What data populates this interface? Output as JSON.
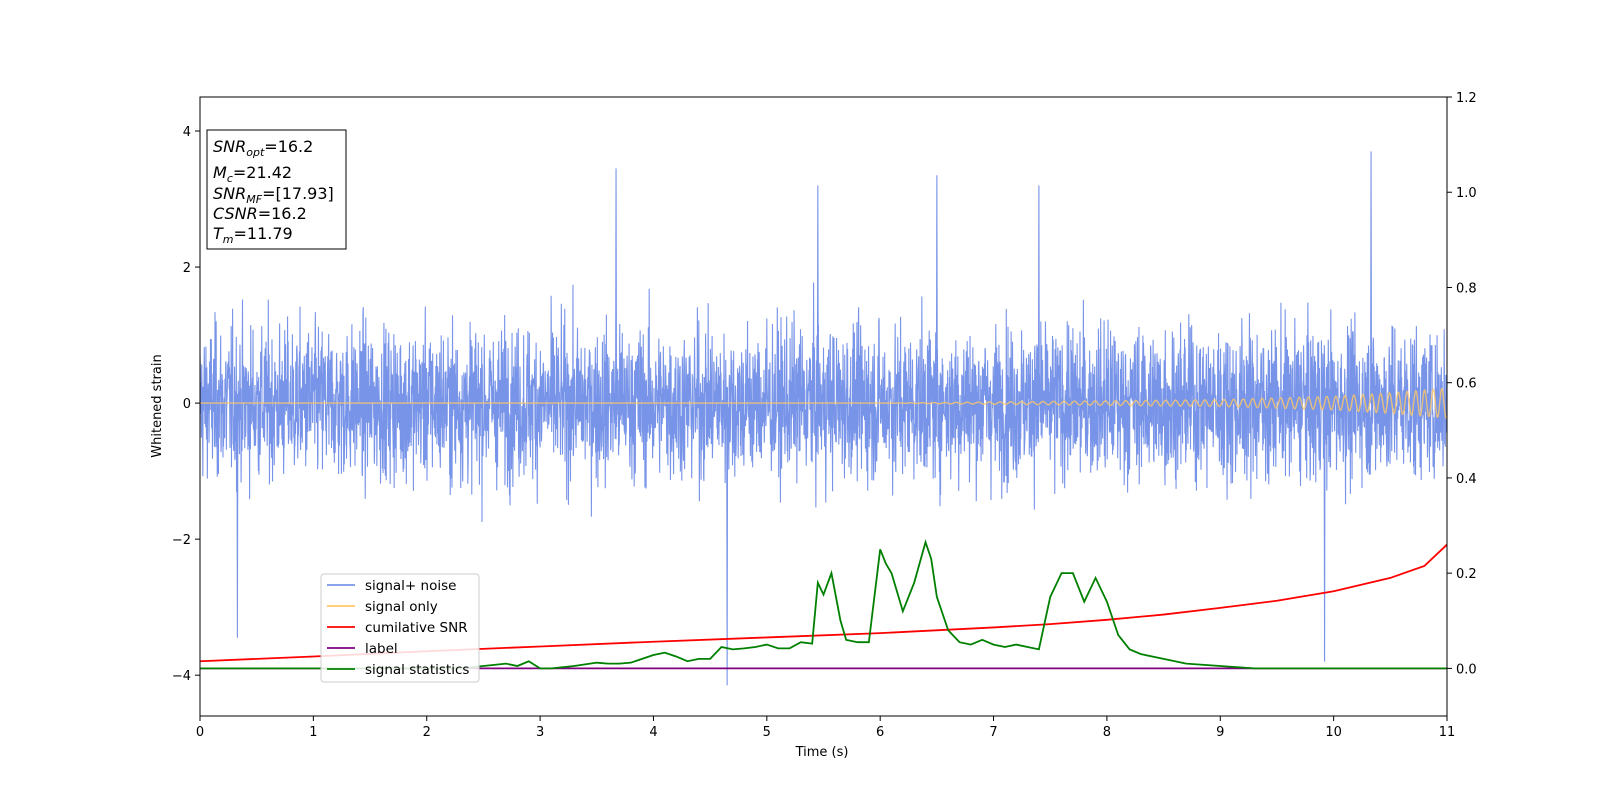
{
  "colors": {
    "signal_noise": "#7894e8",
    "signal_only": "#ffc864",
    "cumulative_snr": "#ff0000",
    "label": "#800080",
    "signal_statistics": "#008000"
  },
  "info_box": [
    {
      "base": "SNR",
      "sub": "opt",
      "value": "=16.2"
    },
    {
      "base": "M",
      "sub": "c",
      "value": "=21.42"
    },
    {
      "base": "SNR",
      "sub": "MF",
      "value": "=[17.93]"
    },
    {
      "base": "CSNR",
      "sub": "",
      "value": "=16.2"
    },
    {
      "base": "T",
      "sub": "m",
      "value": "=11.79"
    }
  ],
  "chart_data": {
    "type": "line",
    "xlabel": "Time (s)",
    "ylabel": "Whitened strain",
    "xlim": [
      0,
      11
    ],
    "ylim_left": [
      -4.6,
      4.5
    ],
    "ylim_right": [
      -0.1,
      1.2
    ],
    "x_ticks": [
      "0",
      "1",
      "2",
      "3",
      "4",
      "5",
      "6",
      "7",
      "8",
      "9",
      "10",
      "11"
    ],
    "y_ticks_left": [
      "−4",
      "−2",
      "0",
      "2",
      "4"
    ],
    "y_ticks_right": [
      "0.0",
      "0.2",
      "0.4",
      "0.6",
      "0.8",
      "1.0",
      "1.2"
    ],
    "legend_position": "lower left",
    "series": [
      {
        "name": "signal+ noise",
        "axis": "left",
        "description_values": {
          "typical_range": [
            -2.4,
            2.4
          ],
          "max": 3.7,
          "min": -4.15
        }
      },
      {
        "name": "signal only",
        "axis": "left",
        "amplitude_envelope": {
          "x": [
            0,
            6,
            9,
            10,
            10.5,
            11
          ],
          "y": [
            0.0,
            0.0,
            0.05,
            0.1,
            0.15,
            0.22
          ]
        }
      },
      {
        "name": "cumilative SNR",
        "axis": "right",
        "x": [
          0,
          1,
          2,
          3,
          4,
          5,
          6,
          7,
          7.5,
          8,
          8.5,
          9,
          9.5,
          10,
          10.5,
          10.8,
          11
        ],
        "y": [
          0.015,
          0.025,
          0.036,
          0.046,
          0.056,
          0.065,
          0.074,
          0.086,
          0.093,
          0.102,
          0.113,
          0.127,
          0.142,
          0.162,
          0.19,
          0.215,
          0.26
        ]
      },
      {
        "name": "label",
        "axis": "right",
        "x": [
          0,
          11
        ],
        "y": [
          0.0,
          0.0
        ]
      },
      {
        "name": "signal statistics",
        "axis": "right",
        "x": [
          0,
          0.5,
          1,
          1.5,
          2,
          2.3,
          2.5,
          2.7,
          2.8,
          2.9,
          3.0,
          3.1,
          3.3,
          3.5,
          3.6,
          3.7,
          3.8,
          3.9,
          4.0,
          4.1,
          4.2,
          4.3,
          4.4,
          4.5,
          4.6,
          4.7,
          4.8,
          4.9,
          5.0,
          5.1,
          5.2,
          5.3,
          5.4,
          5.45,
          5.5,
          5.57,
          5.65,
          5.7,
          5.8,
          5.9,
          6.0,
          6.05,
          6.1,
          6.2,
          6.3,
          6.4,
          6.45,
          6.5,
          6.6,
          6.7,
          6.8,
          6.9,
          7.0,
          7.1,
          7.2,
          7.3,
          7.4,
          7.5,
          7.6,
          7.7,
          7.8,
          7.9,
          8.0,
          8.1,
          8.2,
          8.3,
          8.5,
          8.7,
          9.0,
          9.3,
          9.5,
          10,
          11
        ],
        "y": [
          0.0,
          0.0,
          0.0,
          0.0,
          0.0,
          0.0,
          0.005,
          0.01,
          0.005,
          0.015,
          0.0,
          0.0,
          0.005,
          0.012,
          0.01,
          0.01,
          0.012,
          0.02,
          0.028,
          0.033,
          0.025,
          0.015,
          0.02,
          0.02,
          0.045,
          0.04,
          0.042,
          0.045,
          0.05,
          0.042,
          0.042,
          0.055,
          0.052,
          0.18,
          0.155,
          0.2,
          0.1,
          0.06,
          0.055,
          0.055,
          0.25,
          0.22,
          0.2,
          0.12,
          0.18,
          0.265,
          0.23,
          0.15,
          0.08,
          0.055,
          0.05,
          0.06,
          0.05,
          0.045,
          0.05,
          0.045,
          0.04,
          0.15,
          0.2,
          0.2,
          0.14,
          0.19,
          0.14,
          0.07,
          0.04,
          0.03,
          0.02,
          0.01,
          0.005,
          0.0,
          0.0,
          0.0,
          0.0
        ]
      }
    ]
  }
}
